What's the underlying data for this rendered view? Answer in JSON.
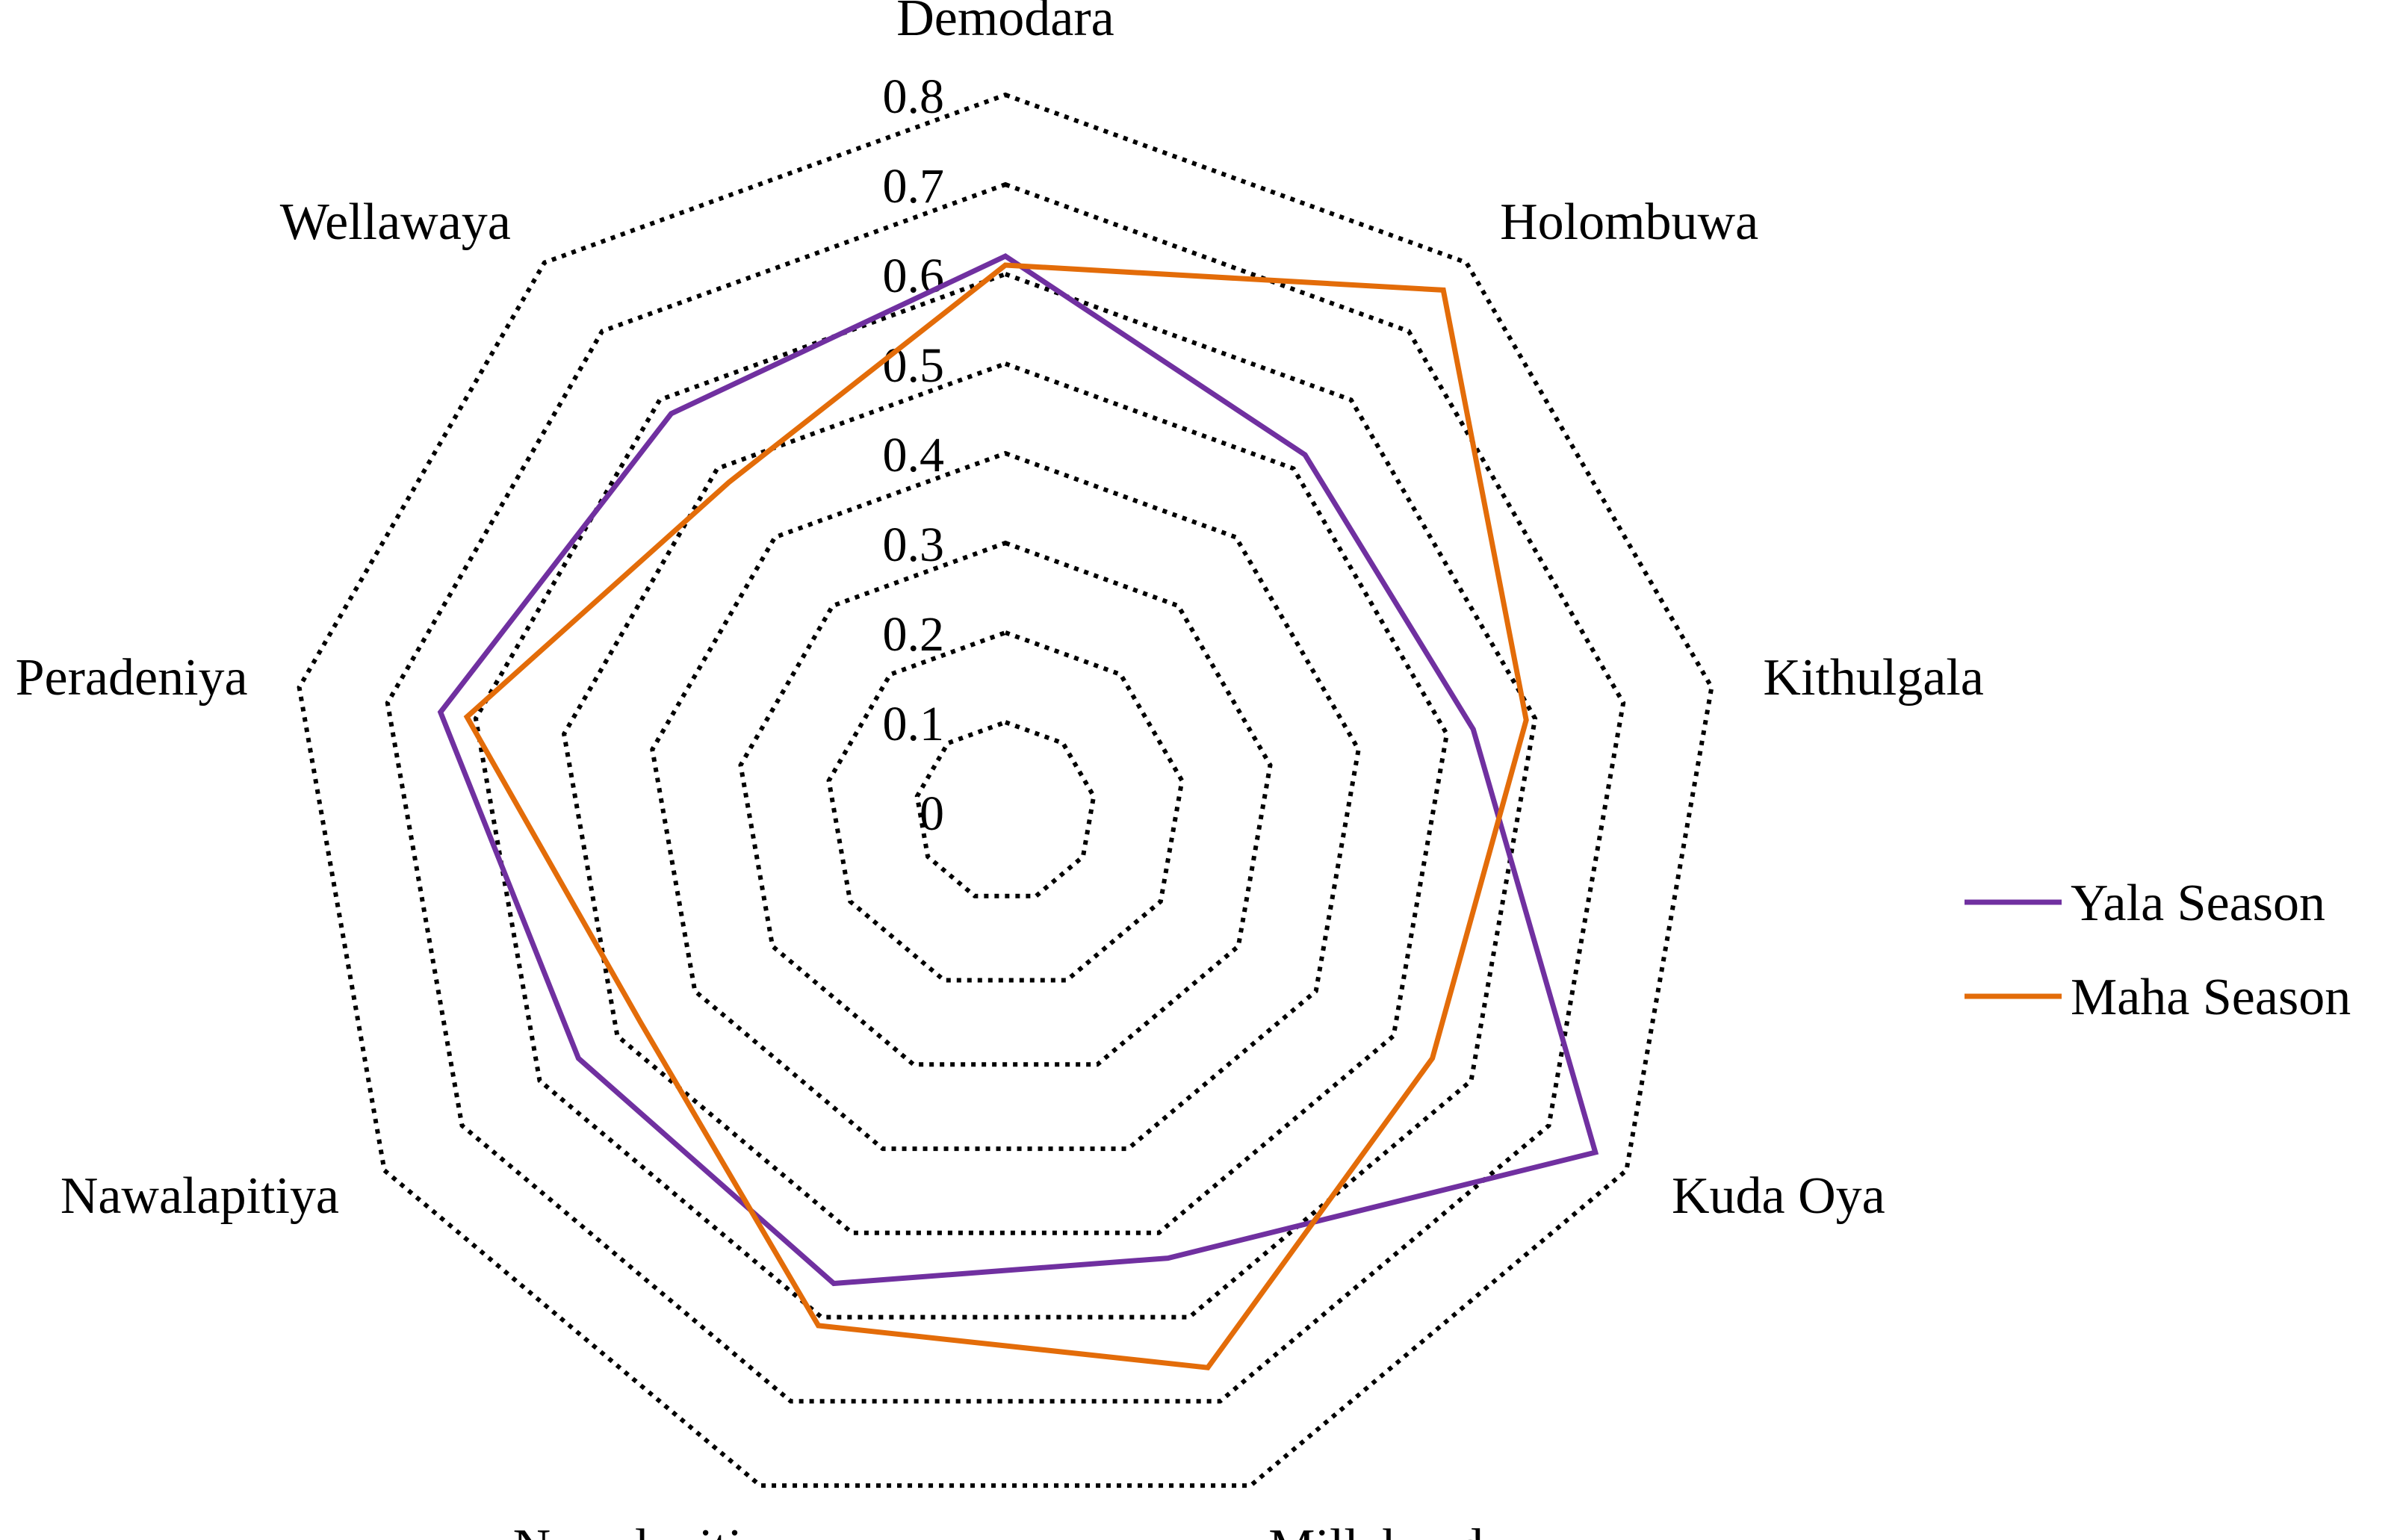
{
  "chart_data": {
    "type": "radar",
    "title": "",
    "categories": [
      "Demodara",
      "Holombuwa",
      "Kithulgala",
      "Kuda Oya",
      "Millakanda",
      "Nawalapiti",
      "Nawalapitiya",
      "Peradeniya",
      "Wellawaya"
    ],
    "rlim": [
      0,
      0.8
    ],
    "ticks": [
      "0",
      "0.1",
      "0.2",
      "0.3",
      "0.4",
      "0.5",
      "0.6",
      "0.7",
      "0.8"
    ],
    "grid": true,
    "grid_style": "dotted",
    "legend_position": "right",
    "series": [
      {
        "name": "Yala Season",
        "color": "#7030A0",
        "values": [
          0.62,
          0.52,
          0.53,
          0.76,
          0.53,
          0.56,
          0.55,
          0.64,
          0.58
        ]
      },
      {
        "name": "Maha Season",
        "color": "#E36C09",
        "values": [
          0.61,
          0.76,
          0.59,
          0.55,
          0.66,
          0.61,
          0.47,
          0.61,
          0.48
        ]
      }
    ]
  }
}
